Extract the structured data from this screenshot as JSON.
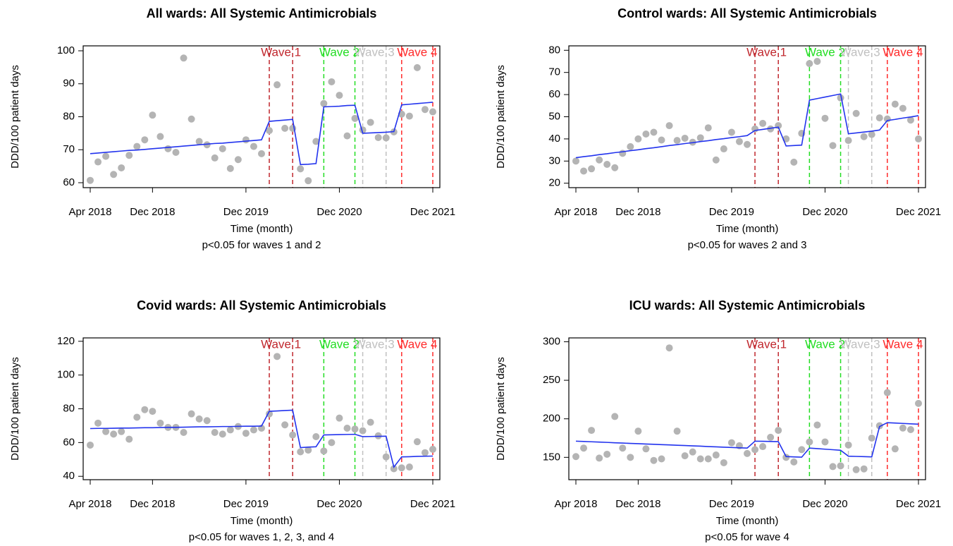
{
  "chart_data": [
    {
      "type": "scatter",
      "title": "All wards: All Systemic Antimicrobials",
      "subtitle": "p<0.05 for waves 1 and 2",
      "x_label": "Time (month)",
      "y_label": "DDD/100 patient days",
      "categories": [
        "Apr 2018",
        null,
        null,
        null,
        null,
        null,
        null,
        null,
        "Dec 2018",
        null,
        null,
        null,
        null,
        null,
        null,
        null,
        null,
        null,
        null,
        null,
        "Dec 2019",
        null,
        null,
        null,
        null,
        null,
        null,
        null,
        null,
        null,
        null,
        null,
        "Dec 2020",
        null,
        null,
        null,
        null,
        null,
        null,
        null,
        null,
        null,
        null,
        null,
        "Dec 2021"
      ],
      "values": [
        60.7,
        66.3,
        68,
        62.5,
        64.5,
        68.3,
        71,
        73,
        80.5,
        74,
        70.3,
        69.2,
        97.8,
        79.3,
        72.5,
        71.5,
        67.5,
        70.3,
        64.3,
        67,
        73,
        71,
        68.8,
        75.8,
        89.7,
        76.5,
        76.5,
        64.2,
        60.6,
        72.5,
        84,
        90.6,
        86.5,
        74.2,
        79.5,
        76,
        78.3,
        73.7,
        73.6,
        75.4,
        80.8,
        80.2,
        94.9,
        82.2,
        81.5
      ],
      "fit_values": [
        68.8,
        69.0,
        69.2,
        69.4,
        69.6,
        69.8,
        69.9,
        70.1,
        70.3,
        70.5,
        70.7,
        70.9,
        71.1,
        71.3,
        71.5,
        71.7,
        71.9,
        72.0,
        72.2,
        72.4,
        72.6,
        72.8,
        73.0,
        78.6,
        78.8,
        79.0,
        79.2,
        65.5,
        65.6,
        65.8,
        83.0,
        83.1,
        83.2,
        83.4,
        83.5,
        75.0,
        75.1,
        75.2,
        75.3,
        75.5,
        83.6,
        83.8,
        84.0,
        84.2,
        84.4
      ],
      "point_color": "#b4b4b4",
      "line_color": "#2233ee",
      "ylim": [
        58.5,
        101.5
      ],
      "yticks": [
        60,
        70,
        80,
        90,
        100
      ],
      "waves": [
        {
          "label": "Wave 1",
          "color": "#c0272d",
          "start": 23,
          "end": 26
        },
        {
          "label": "Wave 2",
          "color": "#22dd22",
          "start": 30,
          "end": 34
        },
        {
          "label": "Wave 3",
          "color": "#c0c0c0",
          "start": 35,
          "end": 38
        },
        {
          "label": "Wave 4",
          "color": "#ff2a2a",
          "start": 40,
          "end": 44
        }
      ]
    },
    {
      "type": "scatter",
      "title": "Control wards: All Systemic Antimicrobials",
      "subtitle": "p<0.05 for waves 2 and 3",
      "x_label": "Time (month)",
      "y_label": "DDD/100 patient days",
      "categories": [
        "Apr 2018",
        null,
        null,
        null,
        null,
        null,
        null,
        null,
        "Dec 2018",
        null,
        null,
        null,
        null,
        null,
        null,
        null,
        null,
        null,
        null,
        null,
        "Dec 2019",
        null,
        null,
        null,
        null,
        null,
        null,
        null,
        null,
        null,
        null,
        null,
        "Dec 2020",
        null,
        null,
        null,
        null,
        null,
        null,
        null,
        null,
        null,
        null,
        null,
        "Dec 2021"
      ],
      "values": [
        30,
        25.5,
        26.5,
        30.5,
        28.5,
        27,
        33.5,
        36.5,
        40,
        42.2,
        43,
        39.5,
        46,
        39.3,
        40.3,
        38.5,
        40.5,
        45,
        30.5,
        35.5,
        43,
        38.8,
        37.5,
        44.5,
        47,
        44.5,
        46,
        40,
        29.5,
        42.5,
        74,
        75,
        49.3,
        37,
        58.5,
        39.3,
        51.5,
        41,
        42,
        49.5,
        49,
        55.7,
        53.8,
        48.5,
        40
      ],
      "fit_values": [
        31.5,
        32.0,
        32.4,
        32.9,
        33.3,
        33.8,
        34.2,
        34.7,
        35.1,
        35.6,
        36.0,
        36.5,
        37.0,
        37.4,
        37.9,
        38.3,
        38.8,
        39.2,
        39.7,
        40.1,
        40.6,
        41.0,
        41.5,
        43.8,
        44.3,
        44.8,
        45.3,
        36.8,
        37.0,
        37.2,
        57.5,
        58.2,
        58.9,
        59.6,
        60.3,
        42.3,
        42.7,
        43.1,
        43.5,
        44.0,
        48.3,
        48.8,
        49.4,
        49.9,
        50.5
      ],
      "point_color": "#b4b4b4",
      "line_color": "#2233ee",
      "ylim": [
        18,
        82
      ],
      "yticks": [
        20,
        30,
        40,
        50,
        60,
        70,
        80
      ],
      "waves": [
        {
          "label": "Wave 1",
          "color": "#c0272d",
          "start": 23,
          "end": 26
        },
        {
          "label": "Wave 2",
          "color": "#22dd22",
          "start": 30,
          "end": 34
        },
        {
          "label": "Wave 3",
          "color": "#c0c0c0",
          "start": 35,
          "end": 38
        },
        {
          "label": "Wave 4",
          "color": "#ff2a2a",
          "start": 40,
          "end": 44
        }
      ]
    },
    {
      "type": "scatter",
      "title": "Covid wards: All Systemic Antimicrobials",
      "subtitle": "p<0.05 for waves 1, 2, 3, and 4",
      "x_label": "Time (month)",
      "y_label": "DDD/100 patient days",
      "categories": [
        "Apr 2018",
        null,
        null,
        null,
        null,
        null,
        null,
        null,
        "Dec 2018",
        null,
        null,
        null,
        null,
        null,
        null,
        null,
        null,
        null,
        null,
        null,
        "Dec 2019",
        null,
        null,
        null,
        null,
        null,
        null,
        null,
        null,
        null,
        null,
        null,
        "Dec 2020",
        null,
        null,
        null,
        null,
        null,
        null,
        null,
        null,
        null,
        null,
        null,
        "Dec 2021"
      ],
      "values": [
        58.5,
        71.5,
        66.5,
        65,
        66.5,
        62,
        75,
        79.5,
        78.5,
        71.5,
        69,
        69,
        66,
        77,
        74,
        73,
        66,
        65,
        67.5,
        69.5,
        65.5,
        67.5,
        68.5,
        77,
        111,
        70.5,
        64.5,
        54.5,
        55.5,
        63.5,
        55,
        60,
        74.5,
        68.5,
        68,
        67,
        72,
        64,
        51.5,
        44.5,
        45,
        45.5,
        60.5,
        54,
        56
      ],
      "fit_values": [
        68.3,
        68.4,
        68.4,
        68.5,
        68.6,
        68.6,
        68.7,
        68.8,
        68.8,
        68.9,
        69.0,
        69.0,
        69.1,
        69.2,
        69.3,
        69.3,
        69.4,
        69.5,
        69.5,
        69.6,
        69.7,
        69.7,
        69.8,
        78.5,
        78.7,
        79.0,
        79.2,
        57.0,
        57.3,
        57.5,
        64.5,
        64.6,
        64.7,
        64.8,
        64.9,
        63.5,
        63.6,
        63.7,
        63.8,
        45.5,
        51.5,
        51.6,
        51.8,
        51.9,
        52.0
      ],
      "point_color": "#b4b4b4",
      "line_color": "#2233ee",
      "ylim": [
        38,
        122
      ],
      "yticks": [
        40,
        60,
        80,
        100,
        120
      ],
      "waves": [
        {
          "label": "Wave 1",
          "color": "#c0272d",
          "start": 23,
          "end": 26
        },
        {
          "label": "Wave 2",
          "color": "#22dd22",
          "start": 30,
          "end": 34
        },
        {
          "label": "Wave 3",
          "color": "#c0c0c0",
          "start": 35,
          "end": 38
        },
        {
          "label": "Wave 4",
          "color": "#ff2a2a",
          "start": 40,
          "end": 44
        }
      ]
    },
    {
      "type": "scatter",
      "title": "ICU wards: All Systemic Antimicrobials",
      "subtitle": "p<0.05 for wave 4",
      "x_label": "Time (month)",
      "y_label": "DDD/100 patient days",
      "categories": [
        "Apr 2018",
        null,
        null,
        null,
        null,
        null,
        null,
        null,
        "Dec 2018",
        null,
        null,
        null,
        null,
        null,
        null,
        null,
        null,
        null,
        null,
        null,
        "Dec 2019",
        null,
        null,
        null,
        null,
        null,
        null,
        null,
        null,
        null,
        null,
        null,
        "Dec 2020",
        null,
        null,
        null,
        null,
        null,
        null,
        null,
        null,
        null,
        null,
        null,
        "Dec 2021"
      ],
      "values": [
        151,
        162,
        185,
        149,
        154,
        203,
        162,
        150,
        184,
        161,
        146,
        148,
        292,
        184,
        152,
        157,
        148,
        148,
        153,
        143,
        169,
        165,
        155,
        160,
        164,
        176,
        185,
        150,
        144,
        160,
        170,
        192,
        170,
        138,
        139,
        166,
        134,
        135,
        175,
        191,
        234,
        161,
        188,
        186,
        220
      ],
      "fit_values": [
        171.0,
        170.6,
        170.2,
        169.8,
        169.4,
        168.9,
        168.5,
        168.1,
        167.7,
        167.3,
        166.9,
        166.5,
        166.1,
        165.7,
        165.3,
        164.9,
        164.5,
        164.0,
        163.6,
        163.2,
        162.8,
        162.4,
        162.0,
        171.0,
        170.8,
        170.6,
        170.4,
        151.0,
        150.6,
        150.2,
        162.0,
        161.3,
        160.6,
        159.9,
        159.2,
        151.5,
        151.2,
        150.9,
        150.6,
        190,
        195,
        194.5,
        194,
        193.5,
        193
      ],
      "point_color": "#b4b4b4",
      "line_color": "#2233ee",
      "ylim": [
        121,
        305
      ],
      "yticks": [
        150,
        200,
        250,
        300
      ],
      "waves": [
        {
          "label": "Wave 1",
          "color": "#c0272d",
          "start": 23,
          "end": 26
        },
        {
          "label": "Wave 2",
          "color": "#22dd22",
          "start": 30,
          "end": 34
        },
        {
          "label": "Wave 3",
          "color": "#c0c0c0",
          "start": 35,
          "end": 38
        },
        {
          "label": "Wave 4",
          "color": "#ff2a2a",
          "start": 40,
          "end": 44
        }
      ]
    }
  ]
}
